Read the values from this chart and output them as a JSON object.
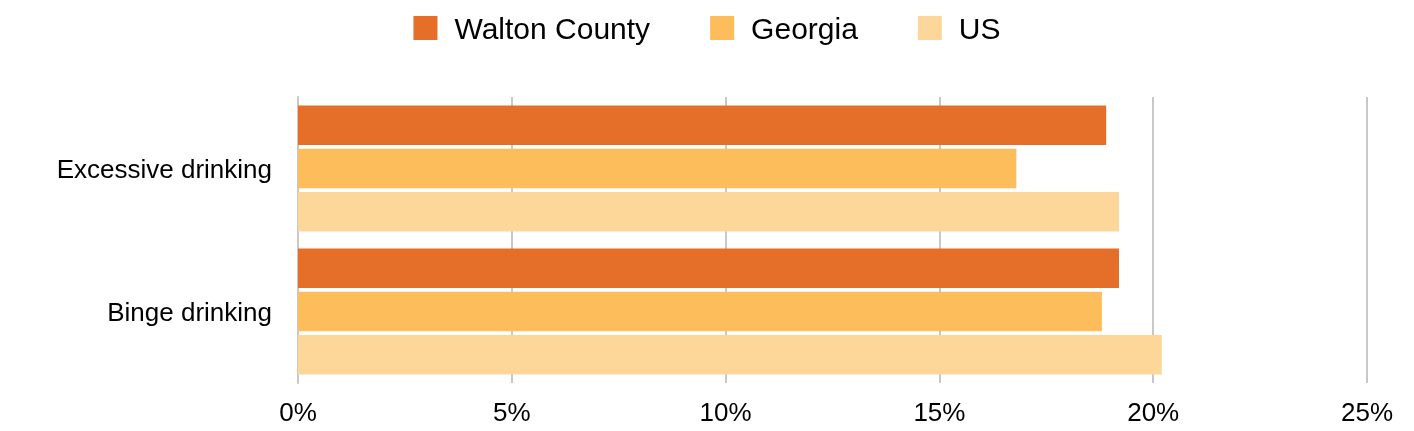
{
  "chart_data": {
    "type": "bar",
    "orientation": "horizontal",
    "categories": [
      "Excessive drinking",
      "Binge drinking"
    ],
    "series": [
      {
        "name": "Walton County",
        "color": "#e56e28",
        "values": [
          18.9,
          19.2
        ]
      },
      {
        "name": "Georgia",
        "color": "#fdbd5b",
        "values": [
          16.8,
          18.8
        ]
      },
      {
        "name": "US",
        "color": "#fdd699",
        "values": [
          19.2,
          20.2
        ]
      }
    ],
    "xlim": [
      0,
      25
    ],
    "xticks": [
      {
        "value": 0,
        "label": "0%"
      },
      {
        "value": 5,
        "label": "5%"
      },
      {
        "value": 10,
        "label": "10%"
      },
      {
        "value": 15,
        "label": "15%"
      },
      {
        "value": 20,
        "label": "20%"
      },
      {
        "value": 25,
        "label": "25%"
      }
    ],
    "grid": "x",
    "legend": "top"
  }
}
